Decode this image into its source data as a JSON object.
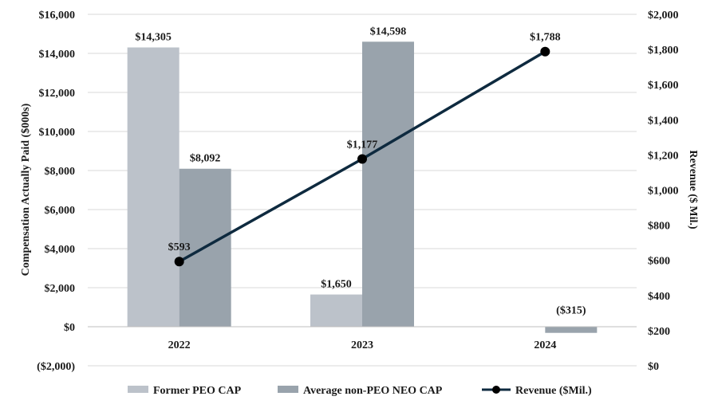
{
  "chart_data": {
    "type": "bar",
    "title": "",
    "categories": [
      "2022",
      "2023",
      "2024"
    ],
    "series": [
      {
        "name": "Former PEO CAP",
        "kind": "bar",
        "axis": "left",
        "color": "#bcc2ca",
        "values": [
          14305,
          1650,
          null
        ],
        "labels": [
          "$14,305",
          "$1,650",
          ""
        ]
      },
      {
        "name": "Average non-PEO NEO CAP",
        "kind": "bar",
        "axis": "left",
        "color": "#99a3ac",
        "values": [
          8092,
          14598,
          -315
        ],
        "labels": [
          "$8,092",
          "$14,598",
          "($315)"
        ]
      },
      {
        "name": "Revenue ($Mil.)",
        "kind": "line",
        "axis": "right",
        "color": "#0e2a3f",
        "values": [
          593,
          1177,
          1788
        ],
        "labels": [
          "$593",
          "$1,177",
          "$1,788"
        ]
      }
    ],
    "ylabel": "Compensation Actually Paid ($000s)",
    "y2label": "Revenue ($ Mil.)",
    "ylim": [
      -2000,
      16000
    ],
    "y2lim": [
      0,
      2000
    ],
    "yticks": [
      -2000,
      0,
      2000,
      4000,
      6000,
      8000,
      10000,
      12000,
      14000,
      16000
    ],
    "ytick_labels": [
      "($2,000)",
      "$0",
      "$2,000",
      "$4,000",
      "$6,000",
      "$8,000",
      "$10,000",
      "$12,000",
      "$14,000",
      "$16,000"
    ],
    "y2ticks": [
      0,
      200,
      400,
      600,
      800,
      1000,
      1200,
      1400,
      1600,
      1800,
      2000
    ],
    "y2tick_labels": [
      "$0",
      "$200",
      "$400",
      "$600",
      "$800",
      "$1,000",
      "$1,200",
      "$1,400",
      "$1,600",
      "$1,800",
      "$2,000"
    ],
    "grid": true,
    "legend": "bottom"
  }
}
